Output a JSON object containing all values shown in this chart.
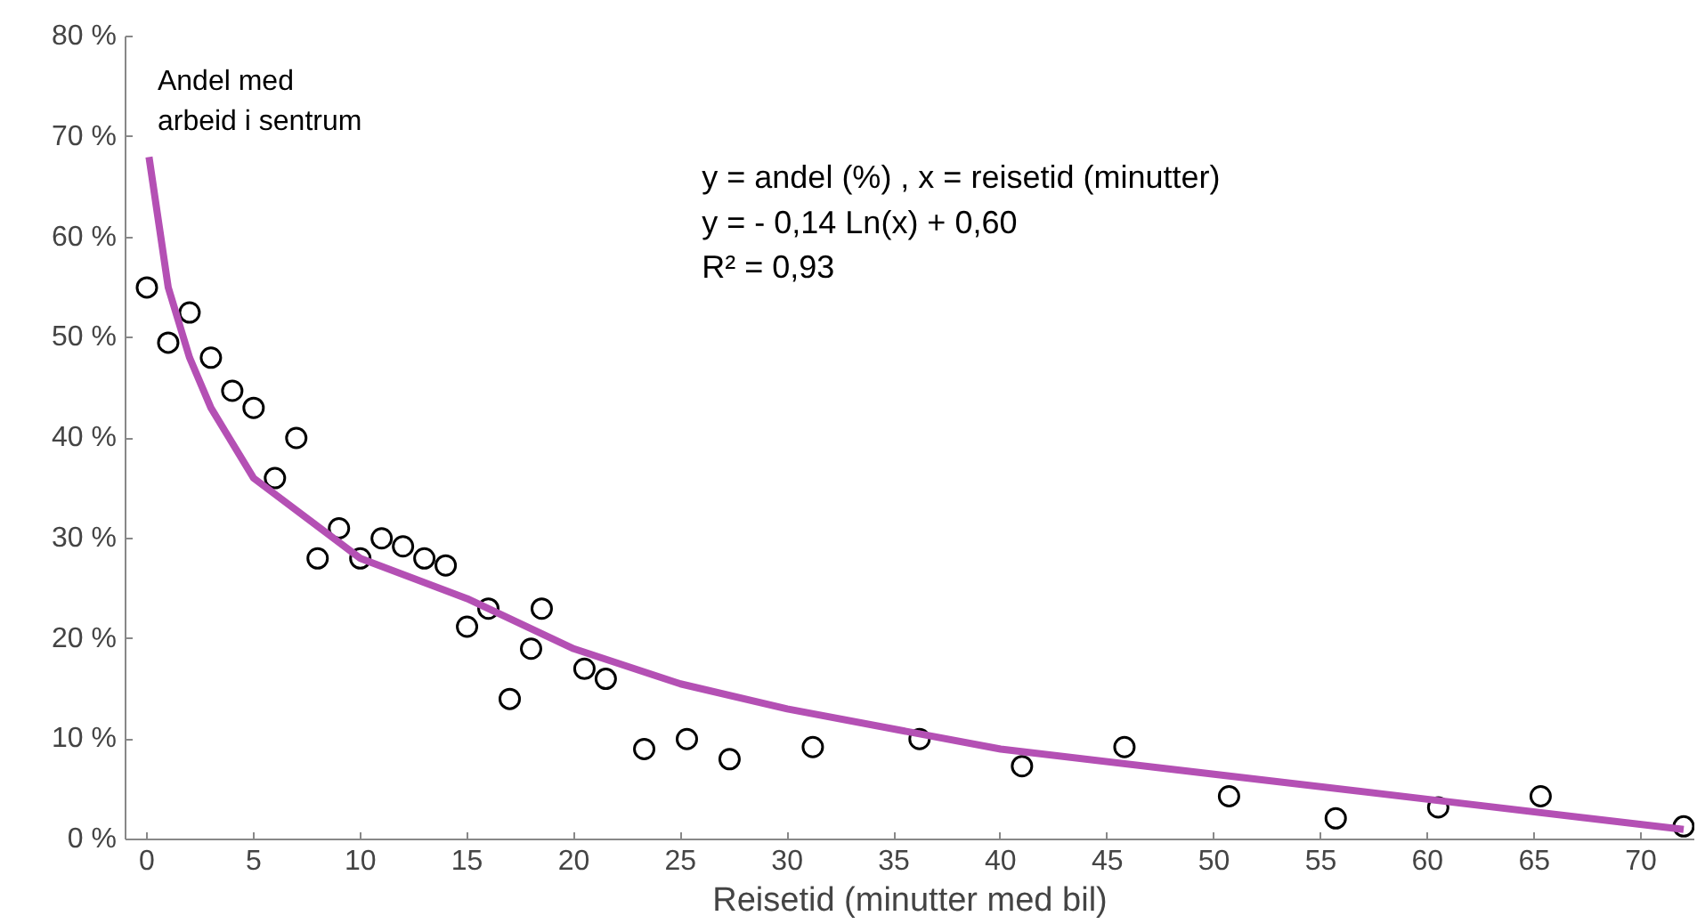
{
  "chart_data": {
    "type": "scatter",
    "xlabel": "Reisetid (minutter med bil)",
    "annotations": [
      "Andel med",
      "arbeid i sentrum",
      "y = andel (%) , x = reisetid (minutter)",
      "y = - 0,14 Ln(x) + 0,60",
      "R² = 0,93"
    ],
    "xlim": [
      -1,
      72.5
    ],
    "ylim": [
      0,
      80
    ],
    "xticks": [
      0,
      5,
      10,
      15,
      20,
      25,
      30,
      35,
      40,
      45,
      50,
      55,
      60,
      65,
      70
    ],
    "yticks": [
      {
        "value": 0,
        "label": "0 %"
      },
      {
        "value": 10,
        "label": "10 %"
      },
      {
        "value": 20,
        "label": "20 %"
      },
      {
        "value": 30,
        "label": "30 %"
      },
      {
        "value": 40,
        "label": "40 %"
      },
      {
        "value": 50,
        "label": "50 %"
      },
      {
        "value": 60,
        "label": "60 %"
      },
      {
        "value": 70,
        "label": "70 %"
      },
      {
        "value": 80,
        "label": "80 %"
      }
    ],
    "grid": false,
    "series": [
      {
        "marker": "circle",
        "color": "#000000",
        "x": [
          0,
          1,
          2,
          3,
          4,
          5,
          6,
          7,
          8,
          9,
          10,
          11,
          12,
          13,
          14,
          15,
          16,
          17,
          18,
          18.5,
          20.5,
          21.5,
          23.3,
          25.3,
          27.3,
          31.2,
          36.2,
          41,
          45.8,
          50.7,
          55.7,
          60.5,
          65.3,
          72
        ],
        "values": [
          55,
          49.5,
          52.5,
          48,
          44.7,
          43,
          36,
          40,
          28,
          31,
          28,
          30,
          29.2,
          28,
          27.3,
          21.2,
          23,
          14,
          19,
          23,
          17,
          16,
          9,
          10,
          8,
          9.2,
          10,
          7.3,
          9.2,
          4.3,
          2.1,
          3.2,
          4.3,
          1.3
        ]
      },
      {
        "type": "line",
        "marker": "none",
        "color": "#b450b4",
        "x": [
          0.1,
          1,
          2,
          3,
          5,
          10,
          15,
          20,
          25,
          30,
          40,
          50,
          60,
          72
        ],
        "values": [
          68,
          55,
          48,
          43,
          36,
          28,
          24,
          19,
          15.5,
          13,
          9,
          6.5,
          4,
          1
        ]
      }
    ]
  }
}
